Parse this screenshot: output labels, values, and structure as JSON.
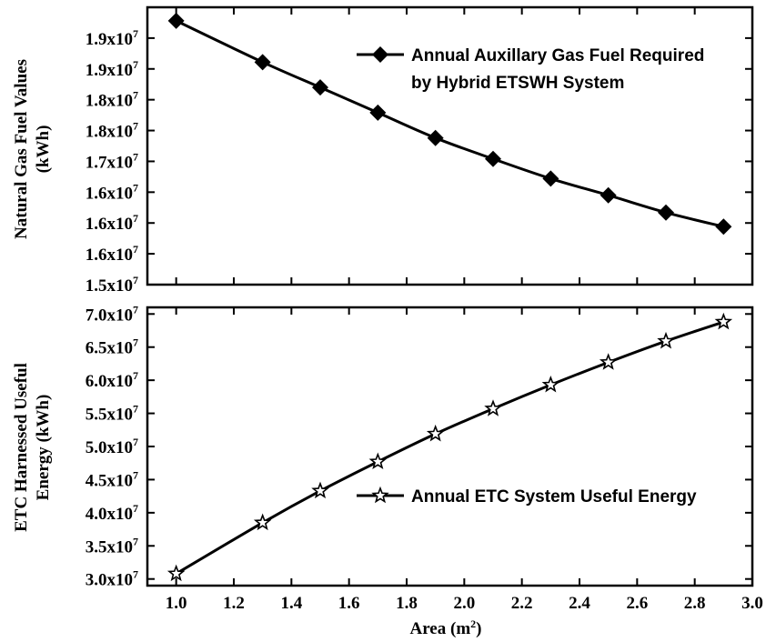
{
  "chart_data": [
    {
      "type": "line",
      "ylabel": [
        "Natural Gas Fuel Values",
        "(kWh)"
      ],
      "ylim": [
        1.5,
        1.95
      ],
      "yticks": [
        {
          "value": 1.5,
          "mantissa": "1.5x10",
          "exp": "7"
        },
        {
          "value": 1.55,
          "mantissa": "1.6x10",
          "exp": "7"
        },
        {
          "value": 1.6,
          "mantissa": "1.6x10",
          "exp": "7"
        },
        {
          "value": 1.65,
          "mantissa": "1.6x10",
          "exp": "7"
        },
        {
          "value": 1.7,
          "mantissa": "1.7x10",
          "exp": "7"
        },
        {
          "value": 1.75,
          "mantissa": "1.8x10",
          "exp": "7"
        },
        {
          "value": 1.8,
          "mantissa": "1.8x10",
          "exp": "7"
        },
        {
          "value": 1.85,
          "mantissa": "1.9x10",
          "exp": "7"
        },
        {
          "value": 1.9,
          "mantissa": "1.9x10",
          "exp": "7"
        }
      ],
      "legend": [
        "Annual Auxillary Gas Fuel Required",
        "by Hybrid ETSWH System"
      ],
      "legend_position": "top-right",
      "marker": "diamond",
      "series": [
        {
          "x": [
            1.0,
            1.3,
            1.5,
            1.7,
            1.9,
            2.1,
            2.3,
            2.5,
            2.7,
            2.9
          ],
          "values": [
            1.928,
            1.861,
            1.82,
            1.779,
            1.738,
            1.704,
            1.672,
            1.645,
            1.617,
            1.594
          ]
        }
      ]
    },
    {
      "type": "line",
      "ylabel": [
        "ETC Harnessed Useful",
        "Energy (kWh)"
      ],
      "xlabel": "Area (m",
      "xlabel_sup": "2",
      "xlabel_end": ")",
      "xlim": [
        0.9,
        3.0
      ],
      "xticks": [
        "1.0",
        "1.2",
        "1.4",
        "1.6",
        "1.8",
        "2.0",
        "2.2",
        "2.4",
        "2.6",
        "2.8",
        "3.0"
      ],
      "ylim": [
        2.9,
        7.1
      ],
      "yticks": [
        {
          "value": 3.0,
          "mantissa": "3.0x10",
          "exp": "7"
        },
        {
          "value": 3.5,
          "mantissa": "3.5x10",
          "exp": "7"
        },
        {
          "value": 4.0,
          "mantissa": "4.0x10",
          "exp": "7"
        },
        {
          "value": 4.5,
          "mantissa": "4.5x10",
          "exp": "7"
        },
        {
          "value": 5.0,
          "mantissa": "5.0x10",
          "exp": "7"
        },
        {
          "value": 5.5,
          "mantissa": "5.5x10",
          "exp": "7"
        },
        {
          "value": 6.0,
          "mantissa": "6.0x10",
          "exp": "7"
        },
        {
          "value": 6.5,
          "mantissa": "6.5x10",
          "exp": "7"
        },
        {
          "value": 7.0,
          "mantissa": "7.0x10",
          "exp": "7"
        }
      ],
      "legend": [
        "Annual ETC System Useful Energy"
      ],
      "legend_position": "lower-right",
      "marker": "star-open",
      "series": [
        {
          "x": [
            1.0,
            1.3,
            1.5,
            1.7,
            1.9,
            2.1,
            2.3,
            2.5,
            2.7,
            2.9
          ],
          "values": [
            3.08,
            3.85,
            4.33,
            4.77,
            5.19,
            5.57,
            5.93,
            6.27,
            6.59,
            6.88
          ]
        }
      ]
    }
  ]
}
